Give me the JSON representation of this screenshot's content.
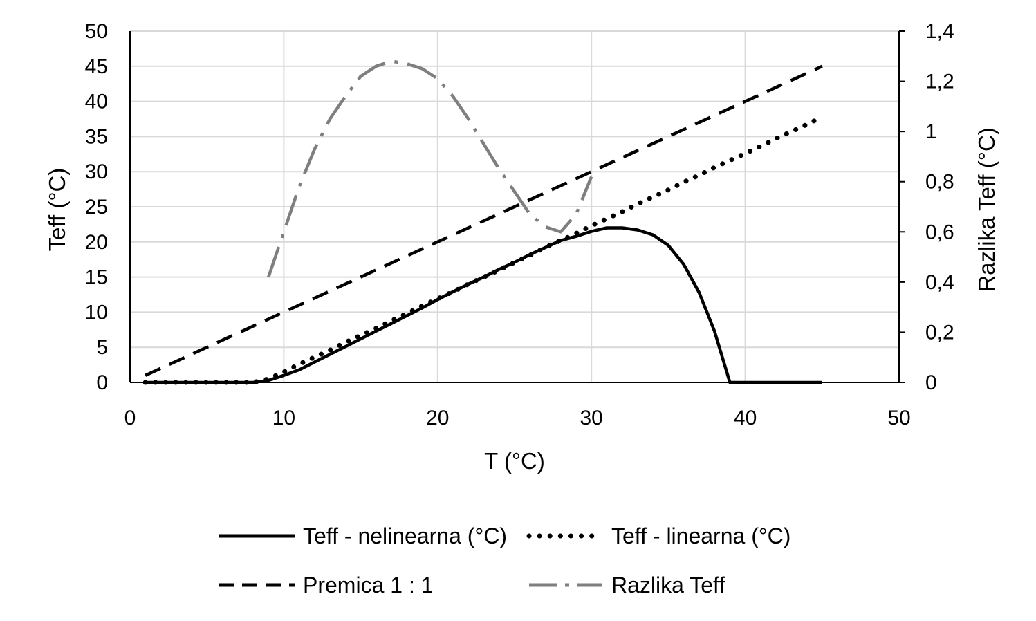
{
  "chart_data": {
    "type": "line",
    "title": "",
    "xlabel": "T (°C)",
    "ylabel": "Teff (°C)",
    "y2label": "Razlika Teff (°C)",
    "xlim": [
      0,
      50
    ],
    "ylim": [
      0,
      50
    ],
    "y2lim": [
      0,
      1.4
    ],
    "x_ticks": [
      "0",
      "10",
      "20",
      "30",
      "40",
      "50"
    ],
    "y_ticks": [
      "0",
      "5",
      "10",
      "15",
      "20",
      "25",
      "30",
      "35",
      "40",
      "45",
      "50"
    ],
    "y2_ticks": [
      "0",
      "0,2",
      "0,4",
      "0,6",
      "0,8",
      "1",
      "1,2",
      "1,4"
    ],
    "grid": "vertical and horizontal",
    "legend_position": "bottom",
    "series": [
      {
        "name": "Teff - nelinearna (°C)",
        "axis": "left",
        "color": "#000000",
        "style": "solid",
        "x": [
          1,
          2,
          3,
          4,
          5,
          6,
          7,
          8,
          9,
          10,
          11,
          12,
          13,
          14,
          15,
          16,
          17,
          18,
          19,
          20,
          21,
          22,
          23,
          24,
          25,
          26,
          27,
          28,
          29,
          30,
          31,
          32,
          33,
          34,
          35,
          36,
          37,
          38,
          39,
          40,
          41,
          42,
          43,
          44,
          45
        ],
        "values": [
          0,
          0,
          0,
          0,
          0,
          0,
          0,
          0,
          0.3,
          1,
          1.8,
          2.9,
          4,
          5.1,
          6.2,
          7.3,
          8.4,
          9.5,
          10.6,
          11.8,
          12.9,
          14,
          15,
          16.1,
          17.1,
          18.2,
          19.2,
          20.2,
          20.8,
          21.5,
          22,
          22,
          21.7,
          21,
          19.5,
          16.8,
          12.8,
          7.3,
          0,
          0,
          0,
          0,
          0,
          0,
          0
        ]
      },
      {
        "name": "Teff - linearna (°C)",
        "axis": "left",
        "color": "#000000",
        "style": "dotted",
        "x": [
          1,
          2,
          3,
          4,
          5,
          6,
          7,
          8,
          9,
          10,
          11,
          12,
          13,
          14,
          15,
          16,
          17,
          18,
          19,
          20,
          21,
          22,
          23,
          24,
          25,
          26,
          27,
          28,
          29,
          30,
          31,
          32,
          33,
          34,
          35,
          36,
          37,
          38,
          39,
          40,
          41,
          42,
          43,
          44,
          45
        ],
        "values": [
          0,
          0,
          0,
          0,
          0,
          0,
          0,
          0,
          0.5,
          1.5,
          2.6,
          3.6,
          4.6,
          5.7,
          6.7,
          7.7,
          8.8,
          9.8,
          10.9,
          11.9,
          12.9,
          14,
          15,
          16,
          17.1,
          18.1,
          19.2,
          20.2,
          21.2,
          22.3,
          23.3,
          24.3,
          25.4,
          26.4,
          27.4,
          28.5,
          29.5,
          30.6,
          31.6,
          32.6,
          33.6,
          34.7,
          35.7,
          36.7,
          37.8
        ]
      },
      {
        "name": "Premica 1 : 1",
        "axis": "left",
        "color": "#000000",
        "style": "dashed",
        "x": [
          1,
          45
        ],
        "values": [
          1,
          45
        ]
      },
      {
        "name": "Razlika Teff",
        "axis": "right",
        "color": "#7f7f7f",
        "style": "dash-dot",
        "x": [
          9,
          10,
          11,
          12,
          13,
          14,
          15,
          16,
          17,
          18,
          19,
          20,
          21,
          22,
          23,
          24,
          25,
          26,
          27,
          28,
          29,
          30
        ],
        "values": [
          0.42,
          0.6,
          0.78,
          0.93,
          1.05,
          1.14,
          1.22,
          1.26,
          1.28,
          1.27,
          1.25,
          1.21,
          1.14,
          1.05,
          0.95,
          0.85,
          0.76,
          0.67,
          0.62,
          0.6,
          0.67,
          0.82
        ]
      }
    ]
  }
}
